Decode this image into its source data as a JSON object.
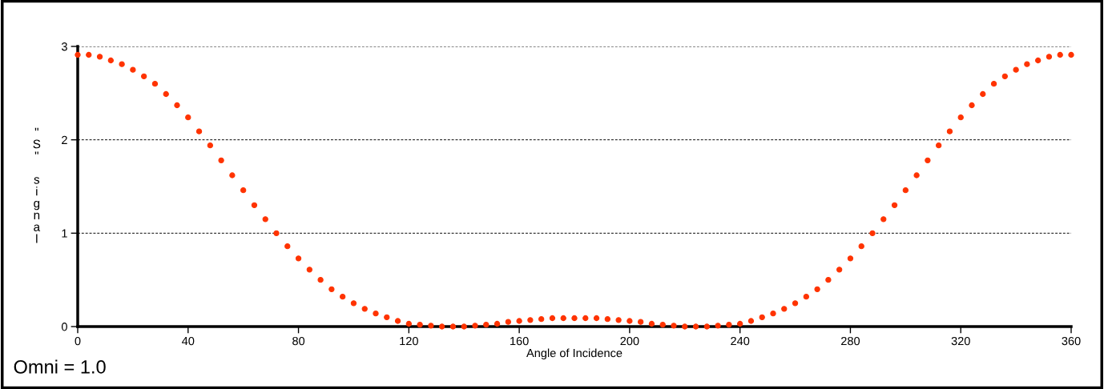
{
  "chart_data": {
    "type": "scatter",
    "xlabel": "Angle of Incidence",
    "ylabel": "\"S\" signal",
    "annotations": [
      "Omni = 1.0"
    ],
    "x": [
      0,
      4,
      8,
      12,
      16,
      20,
      24,
      28,
      32,
      36,
      40,
      44,
      48,
      52,
      56,
      60,
      64,
      68,
      72,
      76,
      80,
      84,
      88,
      92,
      96,
      100,
      104,
      108,
      112,
      116,
      120,
      124,
      128,
      132,
      136,
      140,
      144,
      148,
      152,
      156,
      160,
      164,
      168,
      172,
      176,
      180,
      184,
      188,
      192,
      196,
      200,
      204,
      208,
      212,
      216,
      220,
      224,
      228,
      232,
      236,
      240,
      244,
      248,
      252,
      256,
      260,
      264,
      268,
      272,
      276,
      280,
      284,
      288,
      292,
      296,
      300,
      304,
      308,
      312,
      316,
      320,
      324,
      328,
      332,
      336,
      340,
      344,
      348,
      352,
      356,
      360
    ],
    "series": [
      {
        "color": "#ff3300",
        "values": [
          2.91,
          2.91,
          2.89,
          2.85,
          2.81,
          2.75,
          2.68,
          2.6,
          2.49,
          2.37,
          2.24,
          2.09,
          1.94,
          1.78,
          1.62,
          1.46,
          1.3,
          1.15,
          1.0,
          0.86,
          0.73,
          0.61,
          0.5,
          0.4,
          0.32,
          0.25,
          0.19,
          0.14,
          0.1,
          0.06,
          0.03,
          0.02,
          0.01,
          0.0,
          0.0,
          0.0,
          0.01,
          0.02,
          0.03,
          0.05,
          0.06,
          0.07,
          0.08,
          0.09,
          0.09,
          0.09,
          0.09,
          0.09,
          0.08,
          0.07,
          0.06,
          0.05,
          0.03,
          0.02,
          0.01,
          0.0,
          0.0,
          0.0,
          0.01,
          0.02,
          0.03,
          0.06,
          0.1,
          0.14,
          0.19,
          0.25,
          0.32,
          0.4,
          0.5,
          0.61,
          0.73,
          0.86,
          1.0,
          1.15,
          1.3,
          1.46,
          1.62,
          1.78,
          1.94,
          2.09,
          2.24,
          2.37,
          2.49,
          2.6,
          2.68,
          2.75,
          2.81,
          2.85,
          2.89,
          2.91,
          2.91
        ]
      }
    ],
    "xlim": [
      0,
      360
    ],
    "xticks": [
      0,
      40,
      80,
      120,
      160,
      200,
      240,
      280,
      320,
      360
    ],
    "ylim": [
      0,
      3
    ],
    "yticks": [
      0,
      1,
      2,
      3
    ],
    "grid": "y",
    "marker": "circle",
    "legend": false
  }
}
